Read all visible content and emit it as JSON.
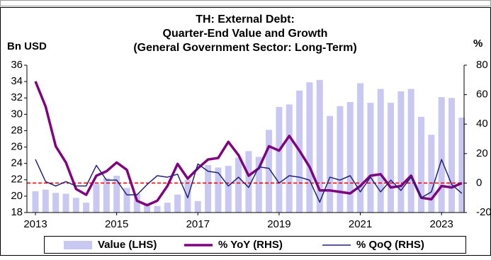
{
  "chart_data": {
    "type": "bar-line",
    "title": [
      "TH: External Debt:",
      "Quarter-End Value and Growth",
      "(General Government Sector: Long-Term)"
    ],
    "y_label": "Bn USD",
    "y2_label": "%",
    "categories": [
      "2013",
      null,
      null,
      null,
      null,
      null,
      null,
      null,
      "2015",
      null,
      null,
      null,
      null,
      null,
      null,
      null,
      "2017",
      null,
      null,
      null,
      null,
      null,
      null,
      null,
      "2019",
      null,
      null,
      null,
      null,
      null,
      null,
      null,
      "2021",
      null,
      null,
      null,
      null,
      null,
      null,
      null,
      "2023",
      null,
      null
    ],
    "ylim": [
      18,
      36
    ],
    "yticks": [
      18,
      20,
      22,
      24,
      26,
      28,
      30,
      32,
      34,
      36
    ],
    "y2lim": [
      -20,
      80
    ],
    "y2ticks": [
      -20,
      0,
      20,
      40,
      60,
      80
    ],
    "reference_line": {
      "value": 0,
      "axis": "y2",
      "color": "#e00000"
    },
    "series": [
      {
        "name": "Value (LHS)",
        "kind": "bar",
        "color": "#c8c8f2",
        "values": [
          20.6,
          20.8,
          20.4,
          20.3,
          19.8,
          19.2,
          21.5,
          22.2,
          22.5,
          21.0,
          20.3,
          19.0,
          18.8,
          19.2,
          20.2,
          22.0,
          19.4,
          23.8,
          23.5,
          23.7,
          24.7,
          25.5,
          24.8,
          28.1,
          30.9,
          31.2,
          32.9,
          33.9,
          34.2,
          29.8,
          31.0,
          31.5,
          33.8,
          31.4,
          33.1,
          31.4,
          32.8,
          33.1,
          29.7,
          27.5,
          32.1,
          32.0,
          29.6
        ]
      },
      {
        "name": "% YoY (RHS)",
        "kind": "line",
        "axis": "y2",
        "color": "#800080",
        "values": [
          69,
          52,
          25,
          14,
          -4,
          -8,
          5,
          8,
          14,
          9,
          -12,
          -15,
          -12,
          -2,
          13,
          3,
          10,
          16,
          17,
          28,
          19,
          5,
          10,
          25,
          22,
          32,
          22,
          11,
          -5,
          -5,
          -6,
          -7,
          -2,
          5,
          6,
          -3,
          -2,
          5,
          -10,
          -11,
          -2,
          -3,
          0
        ]
      },
      {
        "name": "% QoQ (RHS)",
        "kind": "line",
        "axis": "y2",
        "color": "#23237a",
        "values": [
          16,
          1,
          -2,
          1,
          -2,
          -2,
          12,
          2,
          2,
          -8,
          -8,
          -1,
          5,
          4,
          6,
          -10,
          13,
          8,
          7,
          -2,
          4,
          -3,
          11,
          10,
          0,
          5,
          4,
          2,
          -13,
          4,
          2,
          5,
          -6,
          4,
          -6,
          2,
          -5,
          4,
          -10,
          -6,
          16,
          -1,
          -7
        ]
      }
    ]
  }
}
